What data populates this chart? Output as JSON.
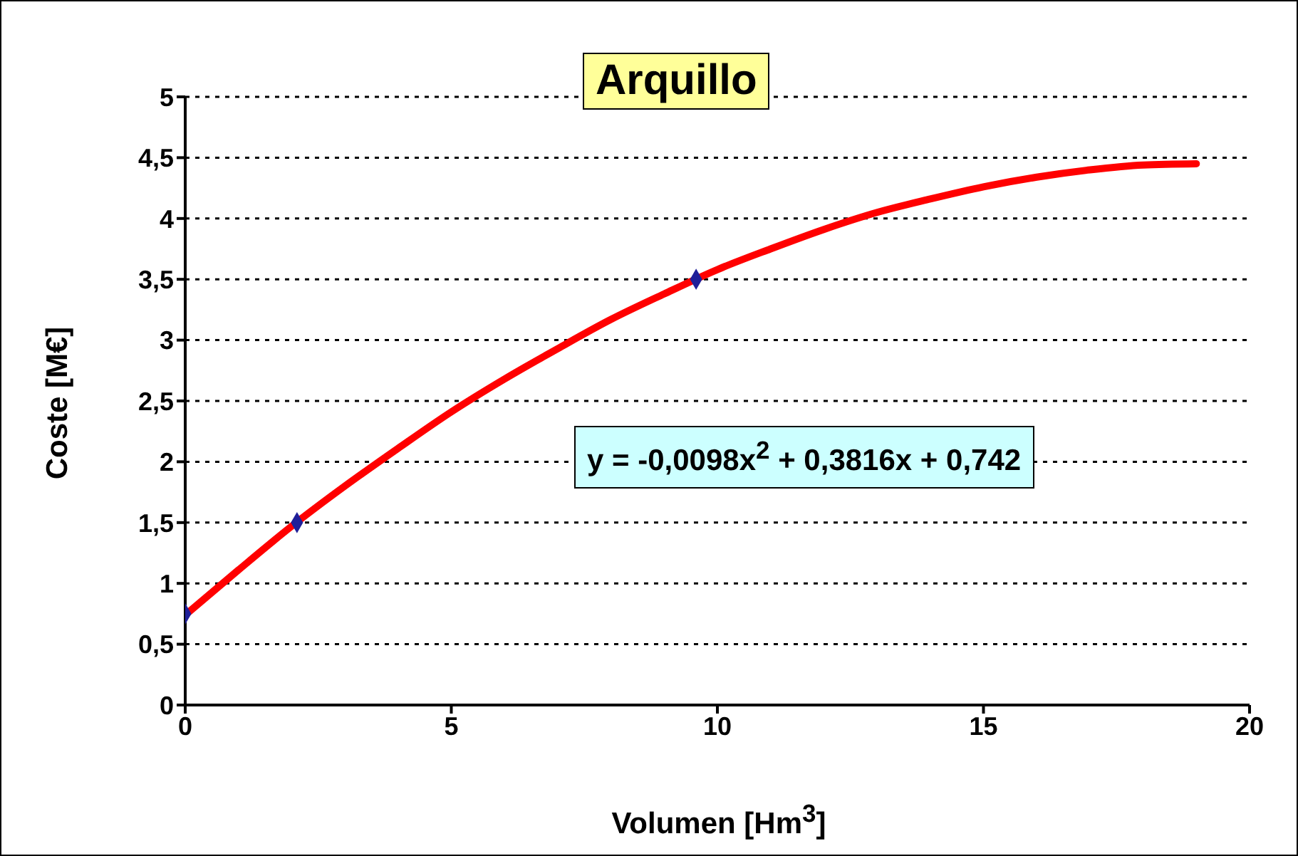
{
  "chart_data": {
    "type": "scatter",
    "title": "Arquillo",
    "xlabel": "Volumen [Hm$^{3}$]",
    "ylabel": "Coste [M€]",
    "annotations": [
      "y = -0,0098x$^{2}$ + 0,3816x + 0,742"
    ],
    "xlim": [
      0,
      20
    ],
    "xticks": [
      0,
      5,
      10,
      15,
      20
    ],
    "ylim": [
      0,
      5
    ],
    "yticks": [
      0,
      {
        "value": 0.5,
        "label": "0,5"
      },
      1,
      {
        "value": 1.5,
        "label": "1,5"
      },
      2,
      {
        "value": 2.5,
        "label": "2,5"
      },
      3,
      {
        "value": 3.5,
        "label": "3,5"
      },
      4,
      {
        "value": 4.5,
        "label": "4,5"
      },
      5
    ],
    "grid": "y",
    "series": [
      {
        "type": "line",
        "color": "#ff0000",
        "marker": "none",
        "x": [
          0,
          1,
          2,
          3,
          4,
          5,
          6,
          7,
          8,
          9,
          10,
          11,
          12,
          13,
          14,
          15,
          16,
          17,
          18,
          19
        ],
        "values": [
          0.74,
          1.11,
          1.47,
          1.8,
          2.11,
          2.41,
          2.68,
          2.93,
          3.17,
          3.38,
          3.58,
          3.75,
          3.91,
          4.05,
          4.16,
          4.26,
          4.34,
          4.4,
          4.44,
          4.45
        ]
      },
      {
        "type": "scatter",
        "color": "#1f1f99",
        "marker": "diamond",
        "x": [
          0,
          2.1,
          9.6
        ],
        "values": [
          0.75,
          1.5,
          3.5
        ]
      }
    ]
  }
}
